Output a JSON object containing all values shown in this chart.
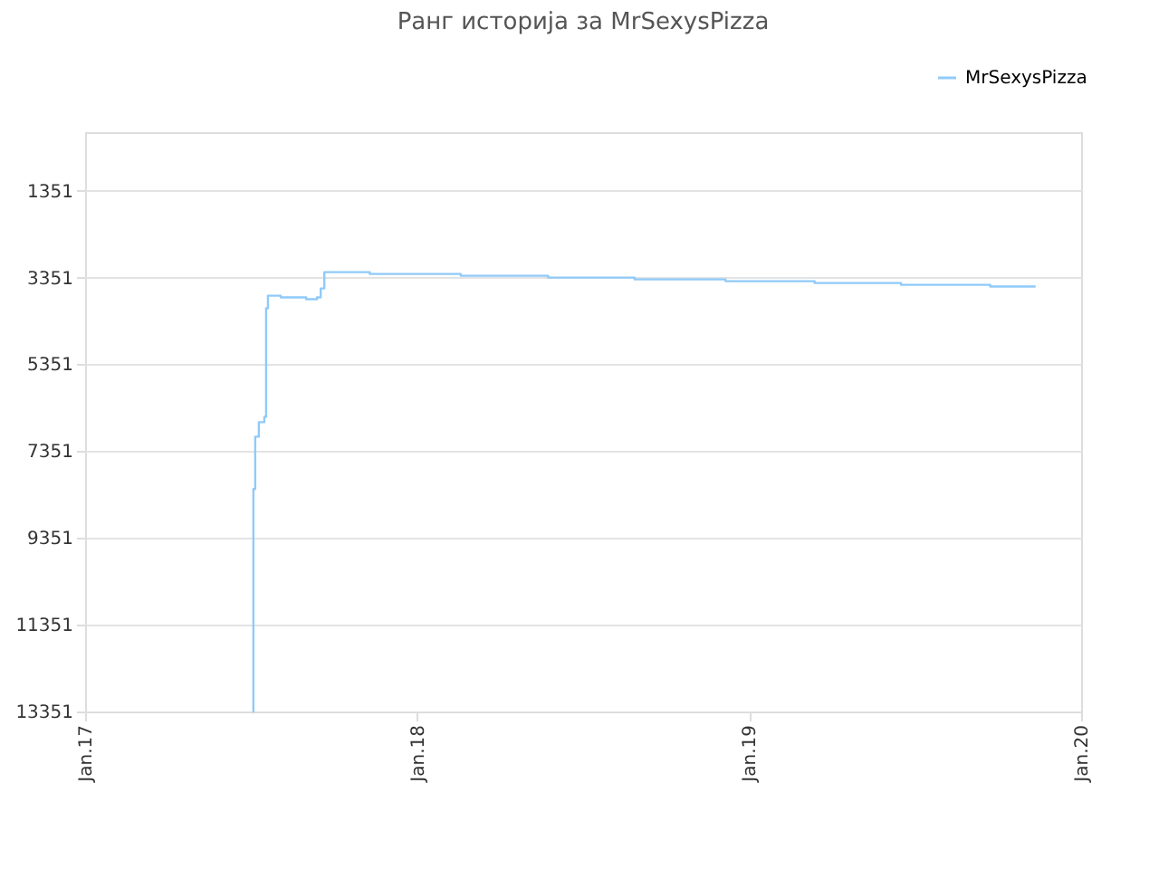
{
  "chart_data": {
    "type": "step",
    "title": "Ранг историја за MrSexysPizza",
    "x": [
      "2017-07-04",
      "2017-07-05",
      "2017-07-07",
      "2017-07-11",
      "2017-07-17",
      "2017-07-19",
      "2017-07-21",
      "2017-08-04",
      "2017-09-01",
      "2017-09-13",
      "2017-09-17",
      "2017-09-21",
      "2017-11-10",
      "2018-02-18",
      "2018-05-25",
      "2018-08-28",
      "2018-12-06",
      "2019-03-14",
      "2019-06-17",
      "2019-09-23",
      "2019-11-12"
    ],
    "series": [
      {
        "name": "MrSexysPizza",
        "color": "#90caf9",
        "values": [
          13351,
          8226,
          7018,
          6684,
          6559,
          4059,
          3768,
          3809,
          3851,
          3809,
          3601,
          3226,
          3268,
          3309,
          3351,
          3393,
          3434,
          3476,
          3518,
          3559,
          3559
        ]
      }
    ],
    "xlim": [
      "2017-01-01",
      "2020-01-01"
    ],
    "xticks": [
      {
        "value": "2017-01-01",
        "label": "Jan.17"
      },
      {
        "value": "2018-01-01",
        "label": "Jan.18"
      },
      {
        "value": "2019-01-01",
        "label": "Jan.19"
      },
      {
        "value": "2020-01-01",
        "label": "Jan.20"
      }
    ],
    "ylim": [
      13351,
      1
    ],
    "yticks": [
      1351,
      3351,
      5351,
      7351,
      9351,
      11351,
      13351
    ],
    "grid": "y",
    "legend": "top right",
    "marker": "none",
    "line_style": "solid"
  }
}
